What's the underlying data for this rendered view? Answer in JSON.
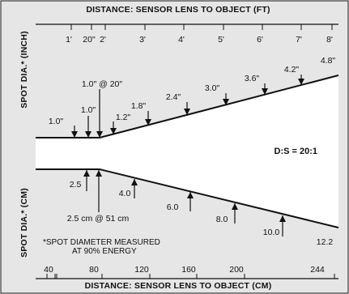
{
  "axes": {
    "top_title": "DISTANCE: SENSOR LENS TO OBJECT (FT)",
    "bottom_title": "DISTANCE: SENSOR LENS TO OBJECT (CM)",
    "left_top_title": "SPOT DIA.* (INCH)",
    "left_bottom_title": "SPOT DIA.* (CM)",
    "top_ticks": [
      "1'",
      "20\"",
      "2'",
      "3'",
      "4'",
      "5'",
      "6'",
      "7'",
      "8'"
    ],
    "bottom_ticks": [
      "40",
      "80",
      "120",
      "160",
      "200",
      "244"
    ]
  },
  "ratio_label": "D:S = 20:1",
  "inch_labels": [
    "1.0\"",
    "1.0\"",
    "1.0\" @ 20\"",
    "1.2\"",
    "1.8\"",
    "2.4\"",
    "3.0\"",
    "3.6\"",
    "4.2\"",
    "4.8\""
  ],
  "cm_labels": [
    "2.5",
    "2.5 cm @ 51 cm",
    "4.0",
    "6.0",
    "8.0",
    "10.0",
    "12.2"
  ],
  "footnote": {
    "line1": "*SPOT DIAMETER MEASURED",
    "line2": "AT 90% ENERGY"
  },
  "colors": {
    "frame_background": "#e6e6e6",
    "beam_fill": "#ffffff",
    "outline": "#111111",
    "ink": "#111111"
  }
}
